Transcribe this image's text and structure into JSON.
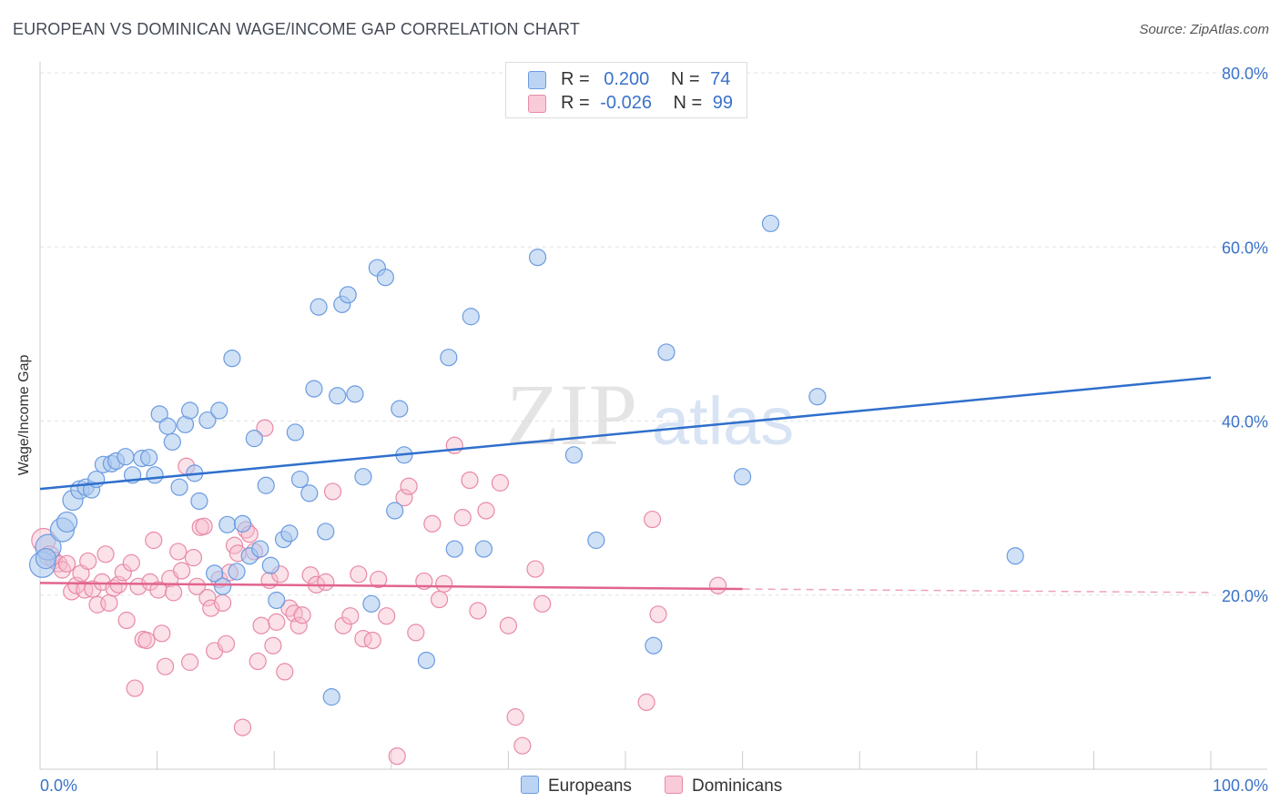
{
  "title": "EUROPEAN VS DOMINICAN WAGE/INCOME GAP CORRELATION CHART",
  "source": "Source: ZipAtlas.com",
  "watermark": {
    "zip": "ZIP",
    "atlas": "atlas"
  },
  "legend": {
    "rows": [
      {
        "r_label": "R =",
        "r_value": "0.200",
        "n_label": "N =",
        "n_value": "74"
      },
      {
        "r_label": "R =",
        "r_value": "-0.026",
        "n_label": "N =",
        "n_value": "99"
      }
    ]
  },
  "bottom_legend": {
    "europeans": "Europeans",
    "dominicans": "Dominicans"
  },
  "colors": {
    "blue_fill": "#a9c8ef",
    "blue_stroke": "#6b9be0",
    "blue_line": "#2f6fcc",
    "pink_fill": "#f7bccd",
    "pink_stroke": "#e88aa8",
    "pink_line": "#e2648e",
    "axis_text": "#3a72c9",
    "grid": "#e3e3e3"
  },
  "chart_data": {
    "type": "scatter",
    "title": "EUROPEAN VS DOMINICAN WAGE/INCOME GAP CORRELATION CHART",
    "xlabel": "",
    "ylabel": "Wage/Income Gap",
    "xlim": [
      0,
      100
    ],
    "ylim": [
      0,
      80
    ],
    "x_tick_labels": [
      "0.0%",
      "100.0%"
    ],
    "y_ticks": [
      20,
      40,
      60,
      80
    ],
    "y_tick_labels": [
      "20.0%",
      "40.0%",
      "60.0%",
      "80.0%"
    ],
    "grid": true,
    "legend_position": "top-center",
    "series": [
      {
        "name": "Europeans",
        "r": 0.2,
        "n": 74,
        "trend": {
          "x0": 0,
          "y0": 32.2,
          "x1": 100,
          "y1": 45.0
        },
        "points": [
          [
            0.2,
            23.5,
            14
          ],
          [
            0.7,
            25.5,
            14
          ],
          [
            0.5,
            24.2,
            11
          ],
          [
            1.9,
            27.5,
            13
          ],
          [
            2.3,
            28.4,
            11
          ],
          [
            2.8,
            30.9,
            11
          ],
          [
            3.4,
            32.1,
            10
          ],
          [
            3.9,
            32.4,
            9
          ],
          [
            4.4,
            32.1,
            9
          ],
          [
            4.8,
            33.3,
            9
          ],
          [
            5.4,
            35.0,
            9
          ],
          [
            6.1,
            35.1,
            9
          ],
          [
            6.5,
            35.4,
            9
          ],
          [
            7.3,
            35.9,
            9
          ],
          [
            7.9,
            33.8,
            9
          ],
          [
            8.7,
            35.7,
            9
          ],
          [
            9.3,
            35.8,
            9
          ],
          [
            9.8,
            33.8,
            9
          ],
          [
            10.2,
            40.8,
            9
          ],
          [
            10.9,
            39.4,
            9
          ],
          [
            11.3,
            37.6,
            9
          ],
          [
            11.9,
            32.4,
            9
          ],
          [
            12.4,
            39.6,
            9
          ],
          [
            12.8,
            41.2,
            9
          ],
          [
            13.2,
            34.0,
            9
          ],
          [
            13.6,
            30.8,
            9
          ],
          [
            14.3,
            40.1,
            9
          ],
          [
            14.9,
            22.5,
            9
          ],
          [
            15.3,
            41.2,
            9
          ],
          [
            16.0,
            28.1,
            9
          ],
          [
            16.4,
            47.2,
            9
          ],
          [
            16.8,
            22.7,
            9
          ],
          [
            17.3,
            28.2,
            9
          ],
          [
            17.9,
            24.5,
            9
          ],
          [
            18.3,
            38.0,
            9
          ],
          [
            18.8,
            25.3,
            9
          ],
          [
            19.3,
            32.6,
            9
          ],
          [
            19.7,
            23.4,
            9
          ],
          [
            20.2,
            19.4,
            9
          ],
          [
            20.8,
            26.4,
            9
          ],
          [
            21.3,
            27.1,
            9
          ],
          [
            21.8,
            38.7,
            9
          ],
          [
            22.2,
            33.3,
            9
          ],
          [
            23.0,
            31.7,
            9
          ],
          [
            23.4,
            43.7,
            9
          ],
          [
            23.8,
            53.1,
            9
          ],
          [
            24.4,
            27.3,
            9
          ],
          [
            25.4,
            42.9,
            9
          ],
          [
            25.8,
            53.4,
            9
          ],
          [
            26.3,
            54.5,
            9
          ],
          [
            26.9,
            43.1,
            9
          ],
          [
            27.6,
            33.6,
            9
          ],
          [
            28.3,
            19.0,
            9
          ],
          [
            28.8,
            57.6,
            9
          ],
          [
            29.5,
            56.5,
            9
          ],
          [
            30.3,
            29.7,
            9
          ],
          [
            30.7,
            41.4,
            9
          ],
          [
            31.1,
            36.1,
            9
          ],
          [
            34.9,
            47.3,
            9
          ],
          [
            35.4,
            25.3,
            9
          ],
          [
            36.8,
            52.0,
            9
          ],
          [
            37.9,
            25.3,
            9
          ],
          [
            42.5,
            58.8,
            9
          ],
          [
            45.6,
            36.1,
            9
          ],
          [
            47.5,
            26.3,
            9
          ],
          [
            52.4,
            14.2,
            9
          ],
          [
            53.5,
            47.9,
            9
          ],
          [
            60.0,
            33.6,
            9
          ],
          [
            62.4,
            62.7,
            9
          ],
          [
            66.4,
            42.8,
            9
          ],
          [
            83.3,
            24.5,
            9
          ],
          [
            24.9,
            8.3,
            9
          ],
          [
            33.0,
            12.5,
            9
          ],
          [
            15.6,
            21.0,
            9
          ]
        ]
      },
      {
        "name": "Dominicans",
        "r": -0.026,
        "n": 99,
        "trend": {
          "x0": 0,
          "y0": 21.4,
          "x1": 60,
          "y1": 20.7
        },
        "trend_dashed": {
          "x0": 60,
          "y0": 20.7,
          "x1": 100,
          "y1": 20.3
        },
        "points": [
          [
            0.3,
            26.3,
            13
          ],
          [
            0.8,
            24.5,
            11
          ],
          [
            1.2,
            24.0,
            9
          ],
          [
            1.6,
            23.6,
            9
          ],
          [
            1.9,
            22.9,
            9
          ],
          [
            2.3,
            23.6,
            9
          ],
          [
            2.7,
            20.4,
            9
          ],
          [
            3.1,
            21.1,
            9
          ],
          [
            3.5,
            22.5,
            9
          ],
          [
            3.8,
            20.6,
            9
          ],
          [
            4.1,
            23.9,
            9
          ],
          [
            4.5,
            20.7,
            9
          ],
          [
            4.9,
            18.9,
            9
          ],
          [
            5.3,
            21.5,
            9
          ],
          [
            5.6,
            24.7,
            9
          ],
          [
            5.9,
            19.1,
            9
          ],
          [
            6.3,
            20.8,
            9
          ],
          [
            6.7,
            21.2,
            9
          ],
          [
            7.1,
            22.6,
            9
          ],
          [
            7.4,
            17.1,
            9
          ],
          [
            7.8,
            23.7,
            9
          ],
          [
            8.1,
            9.3,
            9
          ],
          [
            8.4,
            21.0,
            9
          ],
          [
            8.8,
            14.9,
            9
          ],
          [
            9.1,
            14.8,
            9
          ],
          [
            9.4,
            21.5,
            9
          ],
          [
            9.7,
            26.3,
            9
          ],
          [
            10.1,
            20.6,
            9
          ],
          [
            10.4,
            15.6,
            9
          ],
          [
            10.7,
            11.8,
            9
          ],
          [
            11.1,
            21.9,
            9
          ],
          [
            11.4,
            20.3,
            9
          ],
          [
            11.8,
            25.0,
            9
          ],
          [
            12.1,
            22.8,
            9
          ],
          [
            12.5,
            34.8,
            9
          ],
          [
            12.8,
            12.3,
            9
          ],
          [
            13.1,
            24.3,
            9
          ],
          [
            13.4,
            21.0,
            9
          ],
          [
            13.7,
            27.8,
            9
          ],
          [
            14.0,
            27.9,
            9
          ],
          [
            14.3,
            19.7,
            9
          ],
          [
            14.6,
            18.5,
            9
          ],
          [
            14.9,
            13.6,
            9
          ],
          [
            15.3,
            21.8,
            9
          ],
          [
            15.6,
            19.1,
            9
          ],
          [
            15.9,
            14.4,
            9
          ],
          [
            16.2,
            22.6,
            9
          ],
          [
            16.6,
            25.7,
            9
          ],
          [
            16.9,
            24.8,
            9
          ],
          [
            17.3,
            4.8,
            9
          ],
          [
            17.6,
            27.5,
            9
          ],
          [
            17.9,
            27.0,
            9
          ],
          [
            18.3,
            25.0,
            9
          ],
          [
            18.6,
            12.4,
            9
          ],
          [
            18.9,
            16.5,
            9
          ],
          [
            19.2,
            39.2,
            9
          ],
          [
            19.6,
            21.7,
            9
          ],
          [
            19.9,
            14.2,
            9
          ],
          [
            20.2,
            16.9,
            9
          ],
          [
            20.5,
            22.4,
            9
          ],
          [
            20.9,
            11.2,
            9
          ],
          [
            21.3,
            18.5,
            9
          ],
          [
            21.7,
            17.9,
            9
          ],
          [
            22.1,
            16.5,
            9
          ],
          [
            22.4,
            17.7,
            9
          ],
          [
            23.1,
            22.3,
            9
          ],
          [
            23.6,
            21.2,
            9
          ],
          [
            24.4,
            21.5,
            9
          ],
          [
            25.0,
            31.9,
            9
          ],
          [
            25.9,
            16.5,
            9
          ],
          [
            26.5,
            17.6,
            9
          ],
          [
            27.2,
            22.4,
            9
          ],
          [
            27.6,
            15.0,
            9
          ],
          [
            28.4,
            14.8,
            9
          ],
          [
            28.9,
            21.8,
            9
          ],
          [
            29.6,
            17.6,
            9
          ],
          [
            30.5,
            1.5,
            9
          ],
          [
            31.1,
            31.2,
            9
          ],
          [
            31.5,
            32.5,
            9
          ],
          [
            32.1,
            15.7,
            9
          ],
          [
            32.8,
            21.6,
            9
          ],
          [
            33.5,
            28.2,
            9
          ],
          [
            34.1,
            19.5,
            9
          ],
          [
            34.5,
            21.3,
            9
          ],
          [
            35.4,
            37.2,
            9
          ],
          [
            36.1,
            28.9,
            9
          ],
          [
            36.7,
            33.2,
            9
          ],
          [
            37.4,
            18.2,
            9
          ],
          [
            38.1,
            29.7,
            9
          ],
          [
            39.3,
            32.9,
            9
          ],
          [
            40.0,
            16.5,
            9
          ],
          [
            40.6,
            6.0,
            9
          ],
          [
            41.2,
            2.7,
            9
          ],
          [
            42.3,
            23.0,
            9
          ],
          [
            42.9,
            19.0,
            9
          ],
          [
            51.8,
            7.7,
            9
          ],
          [
            52.3,
            28.7,
            9
          ],
          [
            52.8,
            17.8,
            9
          ],
          [
            57.9,
            21.1,
            9
          ]
        ]
      }
    ]
  }
}
